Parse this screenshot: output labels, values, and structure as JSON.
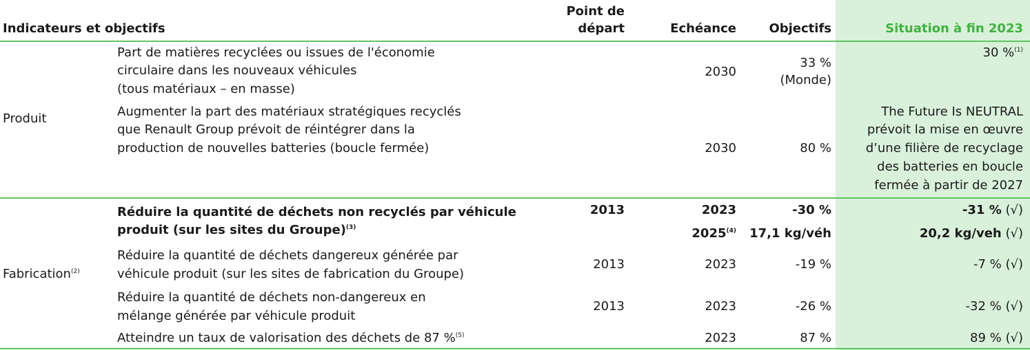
{
  "header": {
    "col_indicators": "Indicateurs et objectifs",
    "col_start_line1": "Point de",
    "col_start_line2": "départ",
    "col_deadline": "Echéance",
    "col_targets": "Objectifs",
    "col_situation": "Situation à fin 2023"
  },
  "produit": {
    "category": "Produit",
    "row1": {
      "line1": "Part de matières recyclées ou issues de l'économie",
      "line2": "circulaire dans les nouveaux véhicules",
      "line3": "(tous matériaux – en masse)",
      "deadline": "2030",
      "target_line1": "33 %",
      "target_line2": "(Monde)",
      "situation": "30 %",
      "situation_note": "(1)"
    },
    "row2": {
      "line1": "Augmenter la part des matériaux stratégiques recyclés",
      "line2": "que Renault Group prévoit de réintégrer dans la",
      "line3": "production de nouvelles batteries (boucle fermée)",
      "deadline": "2030",
      "target": "80 %",
      "situation_line1": "The Future Is NEUTRAL",
      "situation_line2": "prévoit la mise en œuvre",
      "situation_line3": "d’une filière de recyclage",
      "situation_line4": "des batteries en boucle",
      "situation_line5": "fermée à partir de 2027"
    }
  },
  "fabrication": {
    "category": "Fabrication",
    "category_note": "(2)",
    "row1": {
      "line1": "Réduire la quantité de déchets non recyclés par véhicule",
      "line2": "produit (sur les sites du Groupe)",
      "note": "(3)",
      "start": "2013",
      "deadline1": "2023",
      "target1": "-30 %",
      "situation1": "-31 %",
      "situation1_mark": "(√)",
      "deadline2": "2025",
      "deadline2_note": "(4)",
      "target2": "17,1 kg/véh",
      "situation2": "20,2 kg/veh",
      "situation2_mark": "(√)"
    },
    "row2": {
      "line1": "Réduire la quantité de déchets dangereux générée par",
      "line2": "véhicule produit (sur les sites de fabrication du Groupe)",
      "start": "2013",
      "deadline": "2023",
      "target": "-19 %",
      "situation": "-7 % (√)"
    },
    "row3": {
      "line1": "Réduire la quantité de déchets non-dangereux en",
      "line2": "mélange générée par véhicule produit",
      "start": "2013",
      "deadline": "2023",
      "target": "-26 %",
      "situation": "-32 % (√)"
    },
    "row4": {
      "line1": "Atteindre un taux de valorisation des déchets de 87 %",
      "note": "(5)",
      "deadline": "2023",
      "target": "87 %",
      "situation": "89 % (√)"
    }
  },
  "colors": {
    "accent": "#3db33d",
    "highlight_bg": "#d9f1da",
    "rule": "#5fc45f"
  }
}
